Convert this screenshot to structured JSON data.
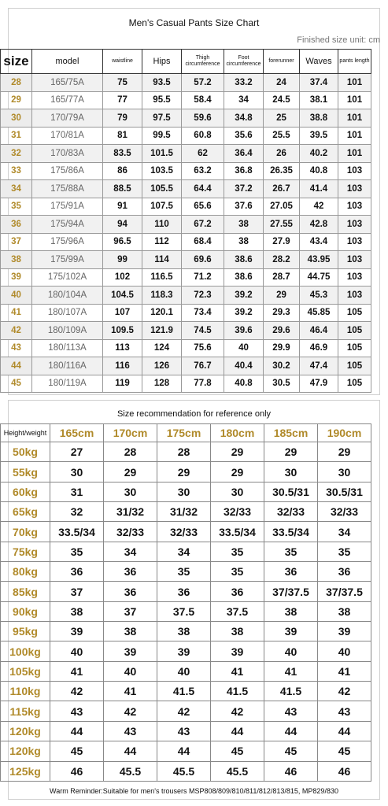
{
  "chart_title": "Men's Casual Pants Size Chart",
  "unit_label": "Finished size unit: cm",
  "size_table": {
    "headers": [
      "size",
      "model",
      "waistline",
      "Hips",
      "Thigh circumference",
      "Foot circumference",
      "forerunner",
      "Waves",
      "pants length"
    ],
    "rows": [
      [
        "28",
        "165/75A",
        "75",
        "93.5",
        "57.2",
        "33.2",
        "24",
        "37.4",
        "101"
      ],
      [
        "29",
        "165/77A",
        "77",
        "95.5",
        "58.4",
        "34",
        "24.5",
        "38.1",
        "101"
      ],
      [
        "30",
        "170/79A",
        "79",
        "97.5",
        "59.6",
        "34.8",
        "25",
        "38.8",
        "101"
      ],
      [
        "31",
        "170/81A",
        "81",
        "99.5",
        "60.8",
        "35.6",
        "25.5",
        "39.5",
        "101"
      ],
      [
        "32",
        "170/83A",
        "83.5",
        "101.5",
        "62",
        "36.4",
        "26",
        "40.2",
        "101"
      ],
      [
        "33",
        "175/86A",
        "86",
        "103.5",
        "63.2",
        "36.8",
        "26.35",
        "40.8",
        "103"
      ],
      [
        "34",
        "175/88A",
        "88.5",
        "105.5",
        "64.4",
        "37.2",
        "26.7",
        "41.4",
        "103"
      ],
      [
        "35",
        "175/91A",
        "91",
        "107.5",
        "65.6",
        "37.6",
        "27.05",
        "42",
        "103"
      ],
      [
        "36",
        "175/94A",
        "94",
        "110",
        "67.2",
        "38",
        "27.55",
        "42.8",
        "103"
      ],
      [
        "37",
        "175/96A",
        "96.5",
        "112",
        "68.4",
        "38",
        "27.9",
        "43.4",
        "103"
      ],
      [
        "38",
        "175/99A",
        "99",
        "114",
        "69.6",
        "38.6",
        "28.2",
        "43.95",
        "103"
      ],
      [
        "39",
        "175/102A",
        "102",
        "116.5",
        "71.2",
        "38.6",
        "28.7",
        "44.75",
        "103"
      ],
      [
        "40",
        "180/104A",
        "104.5",
        "118.3",
        "72.3",
        "39.2",
        "29",
        "45.3",
        "103"
      ],
      [
        "41",
        "180/107A",
        "107",
        "120.1",
        "73.4",
        "39.2",
        "29.3",
        "45.85",
        "105"
      ],
      [
        "42",
        "180/109A",
        "109.5",
        "121.9",
        "74.5",
        "39.6",
        "29.6",
        "46.4",
        "105"
      ],
      [
        "43",
        "180/113A",
        "113",
        "124",
        "75.6",
        "40",
        "29.9",
        "46.9",
        "105"
      ],
      [
        "44",
        "180/116A",
        "116",
        "126",
        "76.7",
        "40.4",
        "30.2",
        "47.4",
        "105"
      ],
      [
        "45",
        "180/119A",
        "119",
        "128",
        "77.8",
        "40.8",
        "30.5",
        "47.9",
        "105"
      ]
    ]
  },
  "rec_title": "Size recommendation for reference only",
  "rec_table": {
    "corner": "Height/weight",
    "heights": [
      "165cm",
      "170cm",
      "175cm",
      "180cm",
      "185cm",
      "190cm"
    ],
    "rows": [
      [
        "50kg",
        "27",
        "28",
        "28",
        "29",
        "29",
        "29"
      ],
      [
        "55kg",
        "30",
        "29",
        "29",
        "29",
        "30",
        "30"
      ],
      [
        "60kg",
        "31",
        "30",
        "30",
        "30",
        "30.5/31",
        "30.5/31"
      ],
      [
        "65kg",
        "32",
        "31/32",
        "31/32",
        "32/33",
        "32/33",
        "32/33"
      ],
      [
        "70kg",
        "33.5/34",
        "32/33",
        "32/33",
        "33.5/34",
        "33.5/34",
        "34"
      ],
      [
        "75kg",
        "35",
        "34",
        "34",
        "35",
        "35",
        "35"
      ],
      [
        "80kg",
        "36",
        "36",
        "35",
        "35",
        "36",
        "36"
      ],
      [
        "85kg",
        "37",
        "36",
        "36",
        "36",
        "37/37.5",
        "37/37.5"
      ],
      [
        "90kg",
        "38",
        "37",
        "37.5",
        "37.5",
        "38",
        "38"
      ],
      [
        "95kg",
        "39",
        "38",
        "38",
        "38",
        "39",
        "39"
      ],
      [
        "100kg",
        "40",
        "39",
        "39",
        "39",
        "40",
        "40"
      ],
      [
        "105kg",
        "41",
        "40",
        "40",
        "41",
        "41",
        "41"
      ],
      [
        "110kg",
        "42",
        "41",
        "41.5",
        "41.5",
        "41.5",
        "42"
      ],
      [
        "115kg",
        "43",
        "42",
        "42",
        "42",
        "43",
        "43"
      ],
      [
        "120kg",
        "44",
        "43",
        "43",
        "44",
        "44",
        "44"
      ],
      [
        "120kg",
        "45",
        "44",
        "44",
        "45",
        "45",
        "45"
      ],
      [
        "125kg",
        "46",
        "45.5",
        "45.5",
        "45.5",
        "46",
        "46"
      ]
    ]
  },
  "footer_note": "Warm Reminder:Suitable for men's trousers MSP808/809/810/811/812/813/815, MP829/830"
}
